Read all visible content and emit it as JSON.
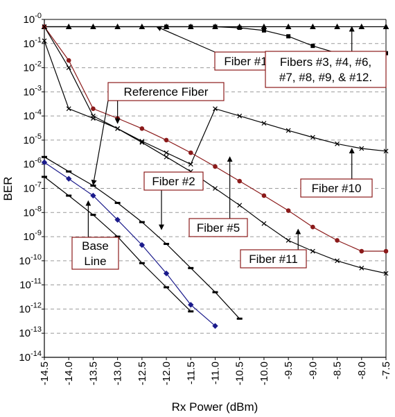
{
  "chart_data": {
    "type": "line",
    "xlabel": "Rx Power (dBm)",
    "ylabel": "BER",
    "xlim": [
      -14.5,
      -7.5
    ],
    "ylim_exponent": [
      -14,
      0
    ],
    "y_scale": "log",
    "grid": "horizontal dashed",
    "x_ticks": [
      "-14.5",
      "-14.0",
      "-13.5",
      "-13.0",
      "-12.5",
      "-12.0",
      "-11.5",
      "-11.0",
      "-10.5",
      "-10.0",
      "-9.5",
      "-9.0",
      "-8.5",
      "-8.0",
      "-7.5"
    ],
    "y_ticks": [
      {
        "base": "10",
        "exp": "-0",
        "value": 1.0
      },
      {
        "base": "10",
        "exp": "-1",
        "value": 0.1
      },
      {
        "base": "10",
        "exp": "-2",
        "value": 0.01
      },
      {
        "base": "10",
        "exp": "-3",
        "value": 0.001
      },
      {
        "base": "10",
        "exp": "-4",
        "value": 0.0001
      },
      {
        "base": "10",
        "exp": "-5",
        "value": 1e-05
      },
      {
        "base": "10",
        "exp": "-6",
        "value": 1e-06
      },
      {
        "base": "10",
        "exp": "-7",
        "value": 1e-07
      },
      {
        "base": "10",
        "exp": "-8",
        "value": 1e-08
      },
      {
        "base": "10",
        "exp": "-9",
        "value": 1e-09
      },
      {
        "base": "10",
        "exp": "-10",
        "value": 1e-10
      },
      {
        "base": "10",
        "exp": "-11",
        "value": 1e-11
      },
      {
        "base": "10",
        "exp": "-12",
        "value": 1e-12
      },
      {
        "base": "10",
        "exp": "-13",
        "value": 1e-13
      },
      {
        "base": "10",
        "exp": "-14",
        "value": 1e-14
      }
    ],
    "series": [
      {
        "name": "Fibers #3, #4, #6, #7, #8, #9, & #12.",
        "color": "#000000",
        "marker": "triangle",
        "x": [
          -14.5,
          -7.5
        ],
        "y": [
          0.5,
          0.5
        ]
      },
      {
        "name": "Fiber #1",
        "color": "#000000",
        "marker": "square",
        "x": [
          -14.5,
          -12.0,
          -11.5,
          -11.0,
          -10.5,
          -10.0,
          -9.5,
          -9.0,
          -8.5,
          -8.0,
          -7.5
        ],
        "y": [
          0.5,
          0.5,
          0.5,
          0.5,
          0.45,
          0.35,
          0.2,
          0.08,
          0.04,
          0.04,
          0.04
        ]
      },
      {
        "name": "Fiber #10",
        "color": "#000000",
        "marker": "x",
        "x": [
          -14.5,
          -14.0,
          -13.5,
          -13.0,
          -12.5,
          -12.0,
          -11.5,
          -11.0,
          -10.5,
          -10.0,
          -9.5,
          -9.0,
          -8.5,
          -8.0,
          -7.5
        ],
        "y": [
          0.13,
          0.0002,
          8e-05,
          3e-05,
          9e-06,
          3e-06,
          1e-06,
          0.0002,
          0.0001,
          5e-05,
          2.5e-05,
          1.3e-05,
          7e-06,
          4.5e-06,
          3.5e-06
        ]
      },
      {
        "name": "Fiber #5",
        "color": "#8b1a1a",
        "marker": "circle",
        "x": [
          -14.5,
          -14.0,
          -13.5,
          -13.0,
          -12.5,
          -12.0,
          -11.5,
          -11.0,
          -10.5,
          -10.0,
          -9.5,
          -9.0,
          -8.5,
          -8.0,
          -7.5
        ],
        "y": [
          0.5,
          0.02,
          0.0002,
          8e-05,
          3e-05,
          1e-05,
          3e-06,
          8e-07,
          2e-07,
          5e-08,
          1.2e-08,
          2.5e-09,
          7e-10,
          2.5e-10,
          2.5e-10
        ]
      },
      {
        "name": "Fiber #11",
        "color": "#000000",
        "marker": "x",
        "x": [
          -14.5,
          -14.0,
          -13.5,
          -13.0,
          -12.5,
          -12.0,
          -11.5,
          -11.0,
          -10.5,
          -10.0,
          -9.5,
          -9.0,
          -8.5,
          -8.0,
          -7.5
        ],
        "y": [
          0.5,
          0.01,
          0.0001,
          3e-05,
          8e-06,
          2e-06,
          5e-07,
          1e-07,
          2e-08,
          3.5e-09,
          7e-10,
          2.5e-10,
          1e-10,
          5e-11,
          3e-11
        ]
      },
      {
        "name": "Reference Fiber",
        "color": "#000000",
        "marker": "dash",
        "x": [
          -14.5,
          -14.0,
          -13.5,
          -13.0,
          -12.5,
          -12.0,
          -11.5,
          -11.0,
          -10.5
        ],
        "y": [
          2e-06,
          5e-07,
          1.3e-07,
          2.5e-08,
          4e-09,
          5e-10,
          5e-11,
          5e-12,
          4e-13
        ]
      },
      {
        "name": "Fiber #2",
        "color": "#1a1a8b",
        "marker": "diamond",
        "x": [
          -14.5,
          -14.0,
          -13.5,
          -13.0,
          -12.5,
          -12.0,
          -11.5,
          -11.0
        ],
        "y": [
          1.2e-06,
          2.5e-07,
          5e-08,
          5e-09,
          4.5e-10,
          3e-11,
          1.5e-12,
          2e-13
        ]
      },
      {
        "name": "Base Line",
        "color": "#000000",
        "marker": "dash",
        "x": [
          -14.5,
          -14.0,
          -13.5,
          -13.0,
          -12.5,
          -12.0,
          -11.5
        ],
        "y": [
          3e-07,
          5e-08,
          8e-09,
          1e-09,
          8e-11,
          8e-12,
          8e-13
        ]
      }
    ],
    "annotations": [
      {
        "text_lines": [
          "Fiber #1"
        ],
        "border": "#8b1a1a",
        "target": [
          -12.2,
          0.5
        ]
      },
      {
        "text_lines": [
          "Fibers #3, #4, #6,",
          "#7, #8, #9, & #12."
        ],
        "border": "#8b1a1a",
        "target": [
          -8.2,
          0.5
        ]
      },
      {
        "text_lines": [
          "Reference Fiber"
        ],
        "border": "#8b1a1a",
        "targets": [
          [
            -13.0,
            5e-05
          ],
          [
            -13.5,
            1.4e-07
          ]
        ]
      },
      {
        "text_lines": [
          "Fiber #10"
        ],
        "border": "#8b1a1a",
        "target": [
          -8.2,
          4.5e-06
        ]
      },
      {
        "text_lines": [
          "Fiber #2"
        ],
        "border": "#8b1a1a",
        "target": [
          -12.1,
          2e-09
        ]
      },
      {
        "text_lines": [
          "Fiber #5"
        ],
        "border": "#8b1a1a",
        "target": [
          -10.7,
          2e-06
        ]
      },
      {
        "text_lines": [
          "Fiber #11"
        ],
        "border": "#8b1a1a",
        "target": [
          -9.3,
          2e-09
        ]
      },
      {
        "text_lines": [
          "Base",
          "Line"
        ],
        "border": "#8b1a1a",
        "target": [
          -13.6,
          3e-08
        ]
      }
    ]
  }
}
